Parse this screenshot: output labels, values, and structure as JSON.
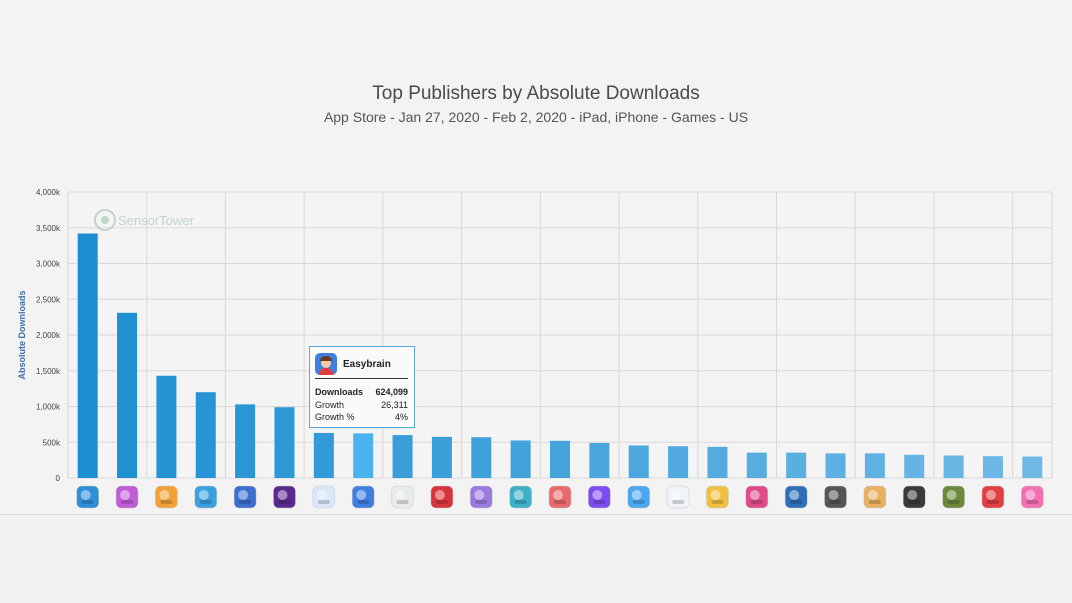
{
  "chart_data": {
    "type": "bar",
    "title": "Top Publishers by Absolute Downloads",
    "subtitle": "App Store - Jan 27, 2020 - Feb 2, 2020 - iPad, iPhone - Games - US",
    "ylabel": "Absolute Downloads",
    "xlabel": "",
    "ylim": [
      0,
      4000000
    ],
    "yticks": [
      {
        "value": 0,
        "label": "0"
      },
      {
        "value": 500000,
        "label": "500k"
      },
      {
        "value": 1000000,
        "label": "1,000k"
      },
      {
        "value": 1500000,
        "label": "1,500k"
      },
      {
        "value": 2000000,
        "label": "2,000k"
      },
      {
        "value": 2500000,
        "label": "2,500k"
      },
      {
        "value": 3000000,
        "label": "3,000k"
      },
      {
        "value": 3500000,
        "label": "3,500k"
      },
      {
        "value": 4000000,
        "label": "4,000k"
      }
    ],
    "grid": true,
    "values": [
      3420000,
      2310000,
      1430000,
      1200000,
      1030000,
      990000,
      630000,
      624099,
      600000,
      575000,
      570000,
      525000,
      520000,
      490000,
      455000,
      445000,
      435000,
      355000,
      355000,
      345000,
      345000,
      325000,
      315000,
      305000,
      300000
    ],
    "highlight_index": 7,
    "category_icons": [
      "publisher-icon-1",
      "publisher-icon-2",
      "publisher-icon-3",
      "publisher-icon-4",
      "publisher-icon-5",
      "publisher-icon-6",
      "publisher-icon-7",
      "publisher-icon-8",
      "publisher-icon-9",
      "publisher-icon-10",
      "publisher-icon-11",
      "publisher-icon-12",
      "publisher-icon-13",
      "publisher-icon-14",
      "publisher-icon-15",
      "publisher-icon-16",
      "publisher-icon-17",
      "publisher-icon-18",
      "publisher-icon-19",
      "publisher-icon-20",
      "publisher-icon-21",
      "publisher-icon-22",
      "publisher-icon-23",
      "publisher-icon-24",
      "publisher-icon-25"
    ],
    "icon_colors": [
      "#2d8fd8",
      "#c05cd6",
      "#f0a23a",
      "#3aa0e0",
      "#3b6fd0",
      "#5a2a8c",
      "#d8e8f8",
      "#3f7fe0",
      "#e8ece8",
      "#d8343a",
      "#9c7be0",
      "#3fb0c8",
      "#e86a6a",
      "#7b4cf0",
      "#4aa8f0",
      "#f0f4f8",
      "#f0c040",
      "#e04a8a",
      "#2f6fb8",
      "#555555",
      "#e8b060",
      "#3a3a3a",
      "#6a8a3a",
      "#e04040",
      "#f070b0"
    ]
  },
  "watermark": "SensorTower",
  "tooltip": {
    "publisher": "Easybrain",
    "rows": [
      {
        "label": "Downloads",
        "value": "624,099"
      },
      {
        "label": "Growth",
        "value": "26,311"
      },
      {
        "label": "Growth %",
        "value": "4%"
      }
    ]
  },
  "colors": {
    "bar_start": "#1c8fd2",
    "bar_end": "#6fb9e6",
    "bar_highlight": "#4bb3ee",
    "axis_label": "#3d6fa6"
  }
}
